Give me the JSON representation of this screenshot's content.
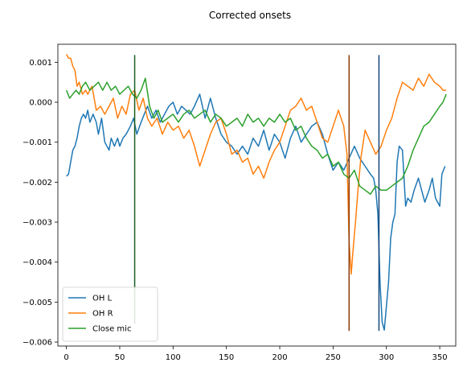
{
  "chart_data": {
    "type": "line",
    "title": "Corrected onsets",
    "xlabel": "",
    "ylabel": "",
    "xlim": [
      -8,
      365
    ],
    "ylim": [
      -0.0061,
      0.00145
    ],
    "xticks": [
      0,
      50,
      100,
      150,
      200,
      250,
      300,
      350
    ],
    "xtick_labels": [
      "0",
      "50",
      "100",
      "150",
      "200",
      "250",
      "300",
      "350"
    ],
    "yticks": [
      0.001,
      0.0,
      -0.001,
      -0.002,
      -0.003,
      -0.004,
      -0.005,
      -0.006
    ],
    "ytick_labels": [
      "0.001",
      "0.000",
      "−0.001",
      "−0.002",
      "−0.003",
      "−0.004",
      "−0.005",
      "−0.006"
    ],
    "grid": false,
    "legend_position": "lower-left",
    "series": [
      {
        "name": "OH L",
        "color": "#1f77b4",
        "x": [
          0,
          2,
          4,
          6,
          8,
          10,
          12,
          14,
          16,
          18,
          20,
          22,
          25,
          28,
          30,
          33,
          36,
          40,
          42,
          45,
          48,
          50,
          53,
          56,
          60,
          63,
          66,
          70,
          73,
          76,
          80,
          84,
          88,
          92,
          96,
          100,
          104,
          108,
          112,
          116,
          120,
          125,
          130,
          135,
          140,
          145,
          150,
          155,
          160,
          165,
          170,
          175,
          180,
          185,
          190,
          195,
          200,
          205,
          210,
          215,
          220,
          225,
          230,
          235,
          240,
          245,
          250,
          255,
          260,
          265,
          270,
          275,
          280,
          285,
          288,
          290,
          292,
          294,
          296,
          298,
          300,
          302,
          304,
          306,
          308,
          310,
          312,
          315,
          318,
          320,
          323,
          326,
          330,
          333,
          336,
          340,
          343,
          346,
          350,
          352,
          355
        ],
        "y": [
          -0.00185,
          -0.0018,
          -0.0015,
          -0.0012,
          -0.0011,
          -0.0009,
          -0.0006,
          -0.0004,
          -0.0003,
          -0.0004,
          -0.0002,
          -0.0005,
          -0.0003,
          -0.0005,
          -0.0008,
          -0.0004,
          -0.001,
          -0.0012,
          -0.0009,
          -0.0011,
          -0.0009,
          -0.0011,
          -0.0009,
          -0.0008,
          -0.0006,
          -0.0004,
          -0.0008,
          -0.0005,
          -0.0003,
          -0.0001,
          -0.0004,
          -0.0002,
          -0.0005,
          -0.0003,
          -0.0001,
          0.0,
          -0.0003,
          -0.0001,
          -0.0002,
          -0.0003,
          -0.0001,
          0.0002,
          -0.0004,
          0.0001,
          -0.0004,
          -0.0008,
          -0.001,
          -0.0011,
          -0.0013,
          -0.0011,
          -0.0013,
          -0.0009,
          -0.0011,
          -0.0007,
          -0.0012,
          -0.0008,
          -0.001,
          -0.0014,
          -0.0009,
          -0.0006,
          -0.001,
          -0.0008,
          -0.0006,
          -0.0005,
          -0.0008,
          -0.0013,
          -0.0017,
          -0.0015,
          -0.0017,
          -0.0014,
          -0.0011,
          -0.0014,
          -0.0016,
          -0.0018,
          -0.0019,
          -0.0022,
          -0.0028,
          -0.0045,
          -0.0055,
          -0.0057,
          -0.0051,
          -0.0045,
          -0.0034,
          -0.003,
          -0.0028,
          -0.0015,
          -0.0011,
          -0.0012,
          -0.0026,
          -0.0024,
          -0.0025,
          -0.0022,
          -0.0019,
          -0.0022,
          -0.0025,
          -0.0022,
          -0.0019,
          -0.0024,
          -0.0026,
          -0.0018,
          -0.0016
        ]
      },
      {
        "name": "OH R",
        "color": "#ff7f0e",
        "x": [
          0,
          2,
          4,
          6,
          8,
          10,
          12,
          15,
          18,
          20,
          24,
          28,
          32,
          36,
          40,
          44,
          48,
          52,
          56,
          60,
          64,
          68,
          72,
          76,
          80,
          85,
          90,
          95,
          100,
          105,
          110,
          115,
          120,
          125,
          130,
          135,
          140,
          145,
          150,
          155,
          160,
          165,
          170,
          175,
          180,
          185,
          190,
          195,
          200,
          205,
          210,
          215,
          220,
          225,
          230,
          235,
          240,
          245,
          250,
          255,
          260,
          263,
          265,
          267,
          269,
          271,
          273,
          276,
          280,
          285,
          290,
          295,
          300,
          305,
          310,
          315,
          320,
          325,
          330,
          335,
          340,
          345,
          350,
          353,
          356
        ],
        "y": [
          0.0012,
          0.0011,
          0.0011,
          0.0009,
          0.0008,
          0.0004,
          0.0005,
          0.0002,
          0.0003,
          0.0002,
          0.0004,
          -0.0002,
          -0.0001,
          -0.0003,
          -0.0001,
          0.0001,
          -0.0004,
          -0.0001,
          -0.0003,
          0.0002,
          0.0003,
          -0.0002,
          0.0001,
          -0.0004,
          -0.0006,
          -0.0004,
          -0.0008,
          -0.0005,
          -0.0007,
          -0.0006,
          -0.0009,
          -0.0007,
          -0.0011,
          -0.0016,
          -0.0012,
          -0.0008,
          -0.0005,
          -0.0004,
          -0.0008,
          -0.0013,
          -0.0012,
          -0.0015,
          -0.0014,
          -0.0018,
          -0.0016,
          -0.0019,
          -0.0015,
          -0.0012,
          -0.001,
          -0.0006,
          -0.0002,
          -0.0001,
          0.0001,
          -0.0002,
          -0.0001,
          -0.0005,
          -0.0009,
          -0.001,
          -0.0006,
          -0.0002,
          -0.0006,
          -0.0013,
          -0.0035,
          -0.0043,
          -0.0036,
          -0.003,
          -0.0023,
          -0.0014,
          -0.0007,
          -0.001,
          -0.0013,
          -0.0011,
          -0.0007,
          -0.0004,
          0.0001,
          0.0005,
          0.0004,
          0.0003,
          0.0006,
          0.0004,
          0.0007,
          0.0005,
          0.0004,
          0.0003,
          0.0003
        ]
      },
      {
        "name": "Close mic",
        "color": "#2ca02c",
        "x": [
          0,
          3,
          6,
          9,
          12,
          15,
          18,
          22,
          26,
          30,
          34,
          38,
          42,
          46,
          50,
          54,
          58,
          62,
          66,
          70,
          74,
          78,
          82,
          86,
          90,
          95,
          100,
          105,
          110,
          115,
          120,
          125,
          130,
          135,
          140,
          145,
          150,
          155,
          160,
          165,
          170,
          175,
          180,
          185,
          190,
          195,
          200,
          205,
          210,
          215,
          220,
          225,
          230,
          235,
          240,
          245,
          250,
          255,
          260,
          265,
          270,
          275,
          280,
          285,
          290,
          295,
          300,
          305,
          310,
          315,
          320,
          325,
          330,
          335,
          340,
          345,
          350,
          353,
          356
        ],
        "y": [
          0.0003,
          0.0001,
          0.0002,
          0.0003,
          0.0002,
          0.0004,
          0.0005,
          0.0003,
          0.0004,
          0.0005,
          0.0003,
          0.0005,
          0.0003,
          0.0004,
          0.0002,
          0.0003,
          0.0004,
          0.0002,
          0.0001,
          0.0003,
          0.0006,
          -0.0001,
          -0.0004,
          -0.0002,
          -0.0005,
          -0.0004,
          -0.0003,
          -0.0005,
          -0.0003,
          -0.0002,
          -0.0004,
          -0.0003,
          -0.0002,
          -0.0005,
          -0.0003,
          -0.0004,
          -0.0006,
          -0.0005,
          -0.0004,
          -0.0006,
          -0.0003,
          -0.0005,
          -0.0004,
          -0.0006,
          -0.0004,
          -0.0005,
          -0.0003,
          -0.0005,
          -0.0004,
          -0.0007,
          -0.0006,
          -0.0009,
          -0.0011,
          -0.0012,
          -0.0014,
          -0.0013,
          -0.0016,
          -0.0015,
          -0.0018,
          -0.0019,
          -0.0017,
          -0.0021,
          -0.0022,
          -0.0023,
          -0.0021,
          -0.0022,
          -0.0022,
          -0.0021,
          -0.002,
          -0.0019,
          -0.0016,
          -0.0012,
          -0.0009,
          -0.0006,
          -0.0005,
          -0.0003,
          -0.0001,
          0.0,
          0.0002
        ]
      }
    ],
    "vlines": [
      {
        "x": 64,
        "ymin": -0.00555,
        "ymax": 0.00118,
        "color": "#1b5e20"
      },
      {
        "x": 265,
        "ymin": -0.00572,
        "ymax": 0.00118,
        "color": "#8a3a0a"
      },
      {
        "x": 293,
        "ymin": -0.00572,
        "ymax": 0.00118,
        "color": "#16467a"
      }
    ]
  }
}
